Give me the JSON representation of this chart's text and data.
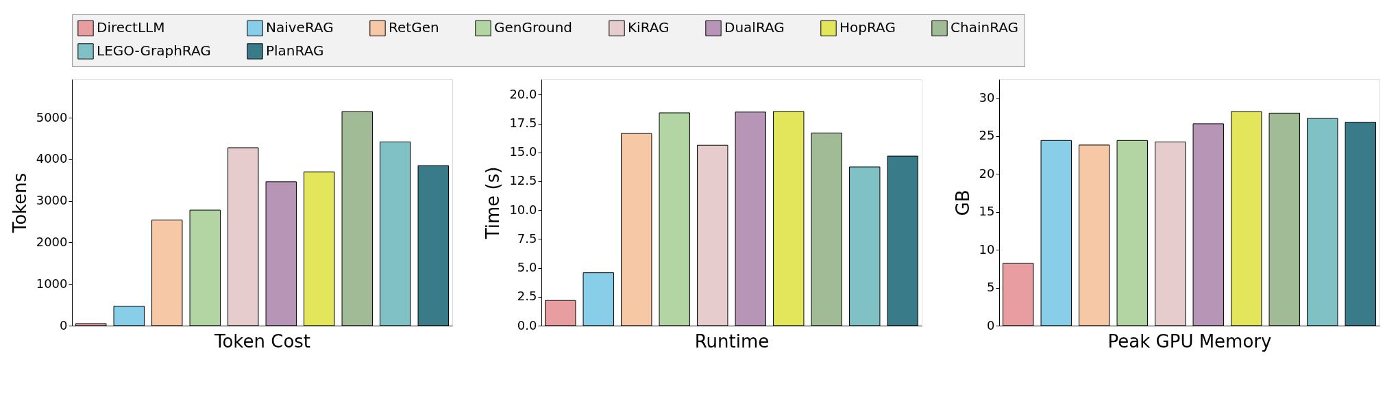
{
  "chart_data": [
    {
      "type": "bar",
      "xlabel": "Token Cost",
      "ylabel": "Tokens",
      "categories": [
        null
      ],
      "ylim": [
        0,
        5925
      ],
      "yticks": [
        0,
        1000,
        2000,
        3000,
        4000,
        5000
      ],
      "legend": "top",
      "tick_labels": "y",
      "grid": false,
      "series": [
        {
          "name": "DirectLLM",
          "color": "#e89da0",
          "values": [
            50
          ]
        },
        {
          "name": "NaiveRAG",
          "color": "#88cee8",
          "values": [
            470
          ]
        },
        {
          "name": "RetGen",
          "color": "#f6c8a6",
          "values": [
            2540
          ]
        },
        {
          "name": "GenGround",
          "color": "#b3d5a4",
          "values": [
            2780
          ]
        },
        {
          "name": "KiRAG",
          "color": "#e6cccd",
          "values": [
            4280
          ]
        },
        {
          "name": "DualRAG",
          "color": "#b795b7",
          "values": [
            3460
          ]
        },
        {
          "name": "HopRAG",
          "color": "#e3e55a",
          "values": [
            3700
          ]
        },
        {
          "name": "ChainRAG",
          "color": "#a0bb96",
          "values": [
            5150
          ]
        },
        {
          "name": "LEGO-GraphRAG",
          "color": "#80c1c6",
          "values": [
            4420
          ]
        },
        {
          "name": "PlanRAG",
          "color": "#3a7b8a",
          "values": [
            3850
          ]
        }
      ]
    },
    {
      "type": "bar",
      "xlabel": "Runtime",
      "ylabel": "Time (s)",
      "categories": [
        null
      ],
      "ylim": [
        0,
        21.32
      ],
      "yticks": [
        {
          "value": 0,
          "label": "0.0"
        },
        2.5,
        {
          "value": 5,
          "label": "5.0"
        },
        7.5,
        {
          "value": 10,
          "label": "10.0"
        },
        12.5,
        {
          "value": 15,
          "label": "15.0"
        },
        17.5,
        {
          "value": 20,
          "label": "20.0"
        }
      ],
      "tick_labels": "y",
      "grid": false,
      "series": [
        {
          "name": "DirectLLM",
          "color": "#e89da0",
          "values": [
            2.18
          ]
        },
        {
          "name": "NaiveRAG",
          "color": "#88cee8",
          "values": [
            4.58
          ]
        },
        {
          "name": "RetGen",
          "color": "#f6c8a6",
          "values": [
            16.63
          ]
        },
        {
          "name": "GenGround",
          "color": "#b3d5a4",
          "values": [
            18.42
          ]
        },
        {
          "name": "KiRAG",
          "color": "#e6cccd",
          "values": [
            15.62
          ]
        },
        {
          "name": "DualRAG",
          "color": "#b795b7",
          "values": [
            18.49
          ]
        },
        {
          "name": "HopRAG",
          "color": "#e3e55a",
          "values": [
            18.54
          ]
        },
        {
          "name": "ChainRAG",
          "color": "#a0bb96",
          "values": [
            16.68
          ]
        },
        {
          "name": "LEGO-GraphRAG",
          "color": "#80c1c6",
          "values": [
            13.74
          ]
        },
        {
          "name": "PlanRAG",
          "color": "#3a7b8a",
          "values": [
            14.68
          ]
        }
      ]
    },
    {
      "type": "bar",
      "xlabel": "Peak GPU Memory",
      "ylabel": "GB",
      "categories": [
        null
      ],
      "ylim": [
        0,
        32.45
      ],
      "yticks": [
        0,
        5,
        10,
        15,
        20,
        25,
        30
      ],
      "tick_labels": "y",
      "grid": false,
      "series": [
        {
          "name": "DirectLLM",
          "color": "#e89da0",
          "values": [
            8.2
          ]
        },
        {
          "name": "NaiveRAG",
          "color": "#88cee8",
          "values": [
            24.4
          ]
        },
        {
          "name": "RetGen",
          "color": "#f6c8a6",
          "values": [
            23.8
          ]
        },
        {
          "name": "GenGround",
          "color": "#b3d5a4",
          "values": [
            24.4
          ]
        },
        {
          "name": "KiRAG",
          "color": "#e6cccd",
          "values": [
            24.2
          ]
        },
        {
          "name": "DualRAG",
          "color": "#b795b7",
          "values": [
            26.6
          ]
        },
        {
          "name": "HopRAG",
          "color": "#e3e55a",
          "values": [
            28.2
          ]
        },
        {
          "name": "ChainRAG",
          "color": "#a0bb96",
          "values": [
            28.0
          ]
        },
        {
          "name": "LEGO-GraphRAG",
          "color": "#80c1c6",
          "values": [
            27.3
          ]
        },
        {
          "name": "PlanRAG",
          "color": "#3a7b8a",
          "values": [
            26.8
          ]
        }
      ]
    }
  ]
}
